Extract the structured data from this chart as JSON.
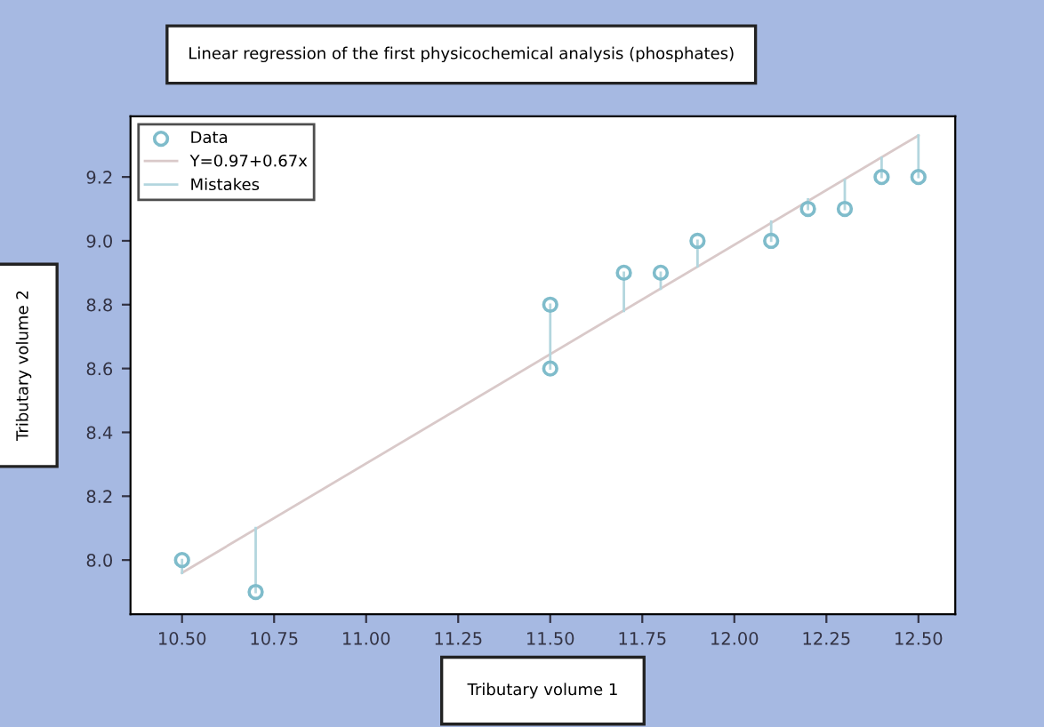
{
  "chart_data": {
    "type": "scatter",
    "title": "Linear regression of the first physicochemical analysis (phosphates)",
    "xlabel": "Tributary volume 1",
    "ylabel": "Tributary volume 2",
    "series": [
      {
        "name": "Data",
        "color": "#7fbccb",
        "marker": "circle",
        "x": [
          10.5,
          10.7,
          11.5,
          11.5,
          11.7,
          11.8,
          11.9,
          12.1,
          12.2,
          12.3,
          12.4,
          12.5
        ],
        "values": [
          8.0,
          7.9,
          8.8,
          8.6,
          8.9,
          8.9,
          9.0,
          9.0,
          9.1,
          9.1,
          9.2,
          9.2
        ]
      },
      {
        "name": "Y=0.97+0.67x",
        "type": "line",
        "color": "#d9c9c9",
        "x": [
          10.5,
          12.5
        ],
        "values": [
          7.96,
          9.33
        ]
      },
      {
        "name": "Mistakes",
        "type": "line",
        "color": "#b3d6de",
        "x": [
          10.5,
          10.5,
          null,
          10.7,
          10.7,
          null,
          11.5,
          11.5,
          null,
          11.7,
          11.7,
          null,
          11.8,
          11.8,
          null,
          11.9,
          11.9,
          null,
          12.1,
          12.1,
          null,
          12.2,
          12.2,
          null,
          12.3,
          12.3,
          null,
          12.4,
          12.4,
          null,
          12.5,
          12.5
        ],
        "values": [
          8.0,
          7.96,
          null,
          7.9,
          8.1,
          null,
          8.8,
          8.6,
          null,
          8.9,
          8.78,
          null,
          8.9,
          8.85,
          null,
          9.0,
          8.92,
          null,
          9.0,
          9.06,
          null,
          9.1,
          9.13,
          null,
          9.1,
          9.19,
          null,
          9.2,
          9.26,
          null,
          9.2,
          9.33
        ]
      }
    ],
    "xlim": [
      10.36,
      12.6
    ],
    "xticks": [
      {
        "value": 10.5,
        "label": "10.50"
      },
      {
        "value": 10.75,
        "label": "10.75"
      },
      {
        "value": 11.0,
        "label": "11.00"
      },
      {
        "value": 11.25,
        "label": "11.25"
      },
      {
        "value": 11.5,
        "label": "11.50"
      },
      {
        "value": 11.75,
        "label": "11.75"
      },
      {
        "value": 12.0,
        "label": "12.00"
      },
      {
        "value": 12.25,
        "label": "12.25"
      },
      {
        "value": 12.5,
        "label": "12.50"
      }
    ],
    "ylim": [
      7.83,
      9.39
    ],
    "yticks": [
      {
        "value": 8.0,
        "label": "8.0"
      },
      8.2,
      8.4,
      8.6,
      8.8,
      {
        "value": 9.0,
        "label": "9.0"
      },
      9.2
    ],
    "grid": false,
    "legend": "top left"
  }
}
